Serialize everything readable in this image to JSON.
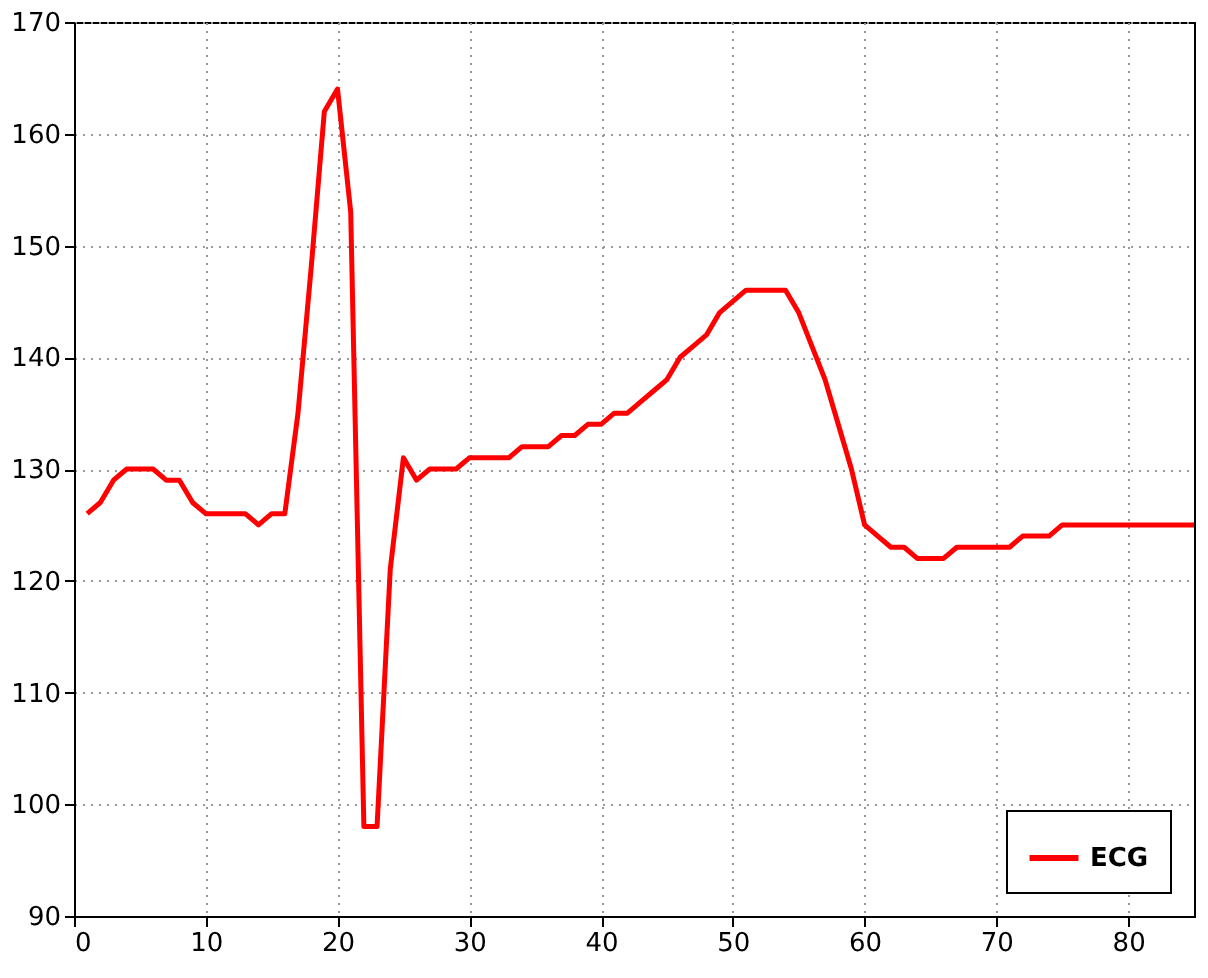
{
  "chart_data": {
    "type": "line",
    "x": [
      1,
      2,
      3,
      4,
      5,
      6,
      7,
      8,
      9,
      10,
      11,
      12,
      13,
      14,
      15,
      16,
      17,
      18,
      19,
      20,
      21,
      22,
      23,
      24,
      25,
      26,
      27,
      28,
      29,
      30,
      31,
      32,
      33,
      34,
      35,
      36,
      37,
      38,
      39,
      40,
      41,
      42,
      43,
      44,
      45,
      46,
      47,
      48,
      49,
      50,
      51,
      52,
      53,
      54,
      55,
      56,
      57,
      58,
      59,
      60,
      61,
      62,
      63,
      64,
      65,
      66,
      67,
      68,
      69,
      70,
      71,
      72,
      73,
      74,
      75,
      76,
      77,
      78,
      79,
      80,
      81,
      82,
      83,
      84,
      85
    ],
    "series": [
      {
        "name": "ECG",
        "color": "#ff0000",
        "values": [
          126,
          127,
          129,
          130,
          130,
          130,
          129,
          129,
          127,
          126,
          126,
          126,
          126,
          125,
          126,
          126,
          135,
          148,
          162,
          164,
          153,
          98,
          98,
          121,
          131,
          129,
          130,
          130,
          130,
          131,
          131,
          131,
          131,
          132,
          132,
          132,
          133,
          133,
          134,
          134,
          135,
          135,
          136,
          137,
          138,
          140,
          141,
          142,
          144,
          145,
          146,
          146,
          146,
          146,
          144,
          141,
          138,
          134,
          130,
          125,
          124,
          123,
          123,
          122,
          122,
          122,
          123,
          123,
          123,
          123,
          123,
          124,
          124,
          124,
          125,
          125,
          125,
          125,
          125,
          125,
          125,
          125,
          125,
          125,
          125
        ]
      }
    ],
    "xlim": [
      0,
      85
    ],
    "xticks": [
      0,
      10,
      20,
      30,
      40,
      50,
      60,
      70,
      80
    ],
    "ylim": [
      90,
      170
    ],
    "yticks": [
      90,
      100,
      110,
      120,
      130,
      140,
      150,
      160,
      170
    ],
    "grid": true,
    "legend": "bottom right",
    "marker": "none",
    "line_style": "solid"
  }
}
